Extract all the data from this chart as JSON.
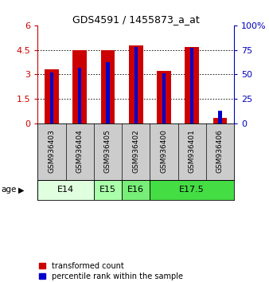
{
  "title": "GDS4591 / 1455873_a_at",
  "samples": [
    "GSM936403",
    "GSM936404",
    "GSM936405",
    "GSM936402",
    "GSM936400",
    "GSM936401",
    "GSM936406"
  ],
  "red_values": [
    3.3,
    4.5,
    4.5,
    4.75,
    3.2,
    4.65,
    0.3
  ],
  "blue_values": [
    52,
    57,
    62,
    78,
    51,
    77,
    13
  ],
  "ylim_left": [
    0,
    6
  ],
  "yticks_left": [
    0,
    1.5,
    3.0,
    4.5,
    6.0
  ],
  "ytick_labels_left": [
    "0",
    "1.5",
    "3",
    "4.5",
    "6"
  ],
  "ylim_right": [
    0,
    100
  ],
  "yticks_right": [
    0,
    25,
    50,
    75,
    100
  ],
  "ytick_labels_right": [
    "0",
    "25",
    "50",
    "75",
    "100%"
  ],
  "age_groups": [
    {
      "label": "E14",
      "samples": [
        0,
        1
      ],
      "color": "#dfffdf"
    },
    {
      "label": "E15",
      "samples": [
        2
      ],
      "color": "#aaffaa"
    },
    {
      "label": "E16",
      "samples": [
        3
      ],
      "color": "#77ee77"
    },
    {
      "label": "E17.5",
      "samples": [
        4,
        5,
        6
      ],
      "color": "#44dd44"
    }
  ],
  "bar_width": 0.5,
  "blue_bar_width": 0.12,
  "red_color": "#cc0000",
  "blue_color": "#0000cc",
  "bg_plot": "#ffffff",
  "bg_sample": "#cccccc",
  "legend_red": "transformed count",
  "legend_blue": "percentile rank within the sample",
  "age_label": "age",
  "left_axis_color": "#cc0000",
  "right_axis_color": "#0000bb",
  "title_fontsize": 9,
  "tick_fontsize": 8,
  "sample_fontsize": 6.5,
  "age_fontsize": 8,
  "legend_fontsize": 7
}
